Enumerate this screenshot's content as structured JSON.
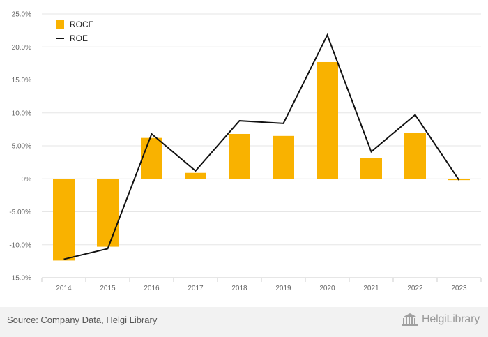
{
  "chart_data": {
    "type": "bar",
    "categories": [
      "2014",
      "2015",
      "2016",
      "2017",
      "2018",
      "2019",
      "2020",
      "2021",
      "2022",
      "2023"
    ],
    "series": [
      {
        "name": "ROCE",
        "type": "bar",
        "color": "#f9b200",
        "values": [
          -12.4,
          -10.3,
          6.2,
          0.9,
          6.8,
          6.5,
          17.7,
          3.1,
          7.0,
          -0.2
        ]
      },
      {
        "name": "ROE",
        "type": "line",
        "color": "#111111",
        "values": [
          -12.2,
          -10.6,
          6.8,
          1.2,
          8.8,
          8.4,
          21.8,
          4.1,
          9.7,
          -0.2
        ]
      }
    ],
    "yticks": [
      "25.0%",
      "20.0%",
      "15.0%",
      "10.0%",
      "5.00%",
      "0%",
      "-5.00%",
      "-10.0%",
      "-15.0%"
    ],
    "ytick_values": [
      25,
      20,
      15,
      10,
      5,
      0,
      -5,
      -10,
      -15
    ],
    "ylim": [
      -15,
      25
    ],
    "grid": true,
    "legend": "top-left"
  },
  "footer": {
    "source": "Source: Company Data, Helgi Library",
    "brand": "HelgiLibrary"
  },
  "icons": {
    "brand": "library-building-icon"
  }
}
